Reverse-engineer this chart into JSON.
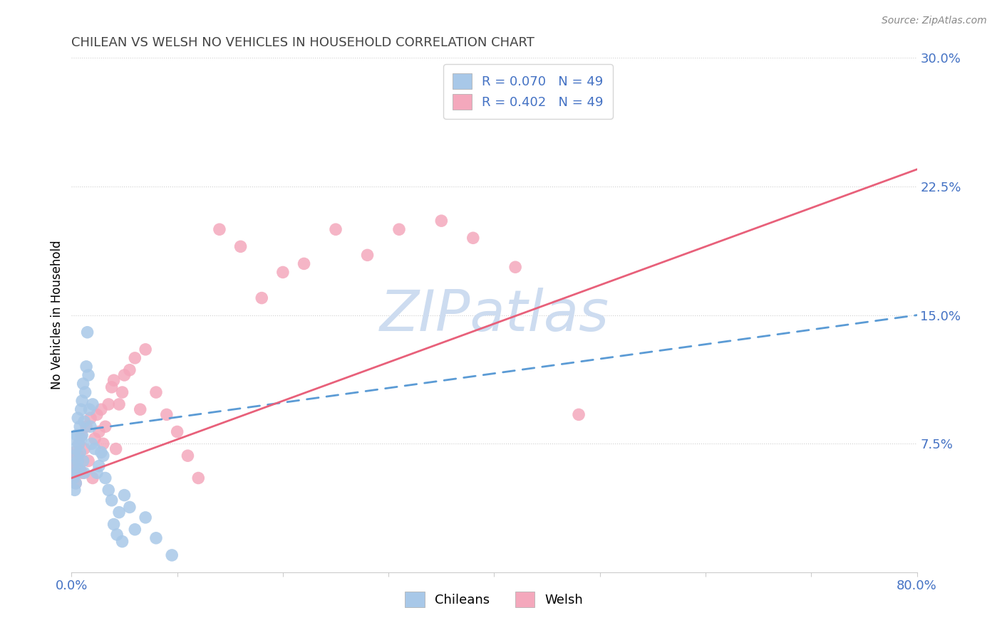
{
  "title": "CHILEAN VS WELSH NO VEHICLES IN HOUSEHOLD CORRELATION CHART",
  "source": "Source: ZipAtlas.com",
  "ylabel": "No Vehicles in Household",
  "xlim": [
    0,
    0.8
  ],
  "ylim": [
    0,
    0.3
  ],
  "ytick_positions": [
    0.075,
    0.15,
    0.225,
    0.3
  ],
  "ytick_labels": [
    "7.5%",
    "15.0%",
    "22.5%",
    "30.0%"
  ],
  "legend_blue_label": "R = 0.070   N = 49",
  "legend_pink_label": "R = 0.402   N = 49",
  "chilean_color": "#a8c8e8",
  "welsh_color": "#f4a8bc",
  "chilean_line_color": "#5b9bd5",
  "welsh_line_color": "#e8607a",
  "watermark_color": "#cddcf0",
  "tick_label_color": "#4472c4",
  "chileans_x": [
    0.001,
    0.002,
    0.002,
    0.003,
    0.003,
    0.004,
    0.004,
    0.005,
    0.005,
    0.006,
    0.006,
    0.007,
    0.007,
    0.008,
    0.008,
    0.009,
    0.009,
    0.01,
    0.01,
    0.011,
    0.011,
    0.012,
    0.012,
    0.013,
    0.014,
    0.015,
    0.016,
    0.017,
    0.018,
    0.019,
    0.02,
    0.022,
    0.024,
    0.026,
    0.028,
    0.03,
    0.032,
    0.035,
    0.038,
    0.04,
    0.043,
    0.045,
    0.048,
    0.05,
    0.055,
    0.06,
    0.07,
    0.08,
    0.095
  ],
  "chileans_y": [
    0.078,
    0.062,
    0.055,
    0.068,
    0.048,
    0.072,
    0.052,
    0.08,
    0.058,
    0.09,
    0.065,
    0.075,
    0.06,
    0.085,
    0.07,
    0.095,
    0.078,
    0.1,
    0.08,
    0.11,
    0.065,
    0.088,
    0.058,
    0.105,
    0.12,
    0.14,
    0.115,
    0.095,
    0.085,
    0.075,
    0.098,
    0.072,
    0.058,
    0.062,
    0.07,
    0.068,
    0.055,
    0.048,
    0.042,
    0.028,
    0.022,
    0.035,
    0.018,
    0.045,
    0.038,
    0.025,
    0.032,
    0.02,
    0.01
  ],
  "welsh_x": [
    0.001,
    0.002,
    0.003,
    0.004,
    0.005,
    0.006,
    0.007,
    0.008,
    0.009,
    0.01,
    0.012,
    0.014,
    0.016,
    0.018,
    0.02,
    0.022,
    0.024,
    0.026,
    0.028,
    0.03,
    0.032,
    0.035,
    0.038,
    0.04,
    0.042,
    0.045,
    0.048,
    0.05,
    0.055,
    0.06,
    0.065,
    0.07,
    0.08,
    0.09,
    0.1,
    0.11,
    0.12,
    0.14,
    0.16,
    0.18,
    0.2,
    0.22,
    0.25,
    0.28,
    0.31,
    0.35,
    0.38,
    0.42,
    0.48
  ],
  "welsh_y": [
    0.065,
    0.058,
    0.07,
    0.052,
    0.062,
    0.068,
    0.075,
    0.06,
    0.08,
    0.058,
    0.072,
    0.085,
    0.065,
    0.09,
    0.055,
    0.078,
    0.092,
    0.082,
    0.095,
    0.075,
    0.085,
    0.098,
    0.108,
    0.112,
    0.072,
    0.098,
    0.105,
    0.115,
    0.118,
    0.125,
    0.095,
    0.13,
    0.105,
    0.092,
    0.082,
    0.068,
    0.055,
    0.2,
    0.19,
    0.16,
    0.175,
    0.18,
    0.2,
    0.185,
    0.2,
    0.205,
    0.195,
    0.178,
    0.092
  ],
  "chilean_line_x0": 0.0,
  "chilean_line_y0": 0.082,
  "chilean_line_x1": 0.8,
  "chilean_line_y1": 0.15,
  "welsh_line_x0": 0.0,
  "welsh_line_y0": 0.055,
  "welsh_line_x1": 0.8,
  "welsh_line_y1": 0.235
}
